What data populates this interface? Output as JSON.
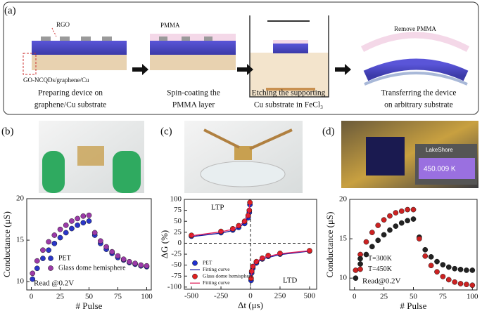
{
  "panel_labels": [
    "(a)",
    "(b)",
    "(c)",
    "(d)"
  ],
  "schematic": {
    "labels": [
      "RGO",
      "GO-NCQDs/graphene/Cu",
      "PMMA",
      "Remove PMMA"
    ],
    "steps": [
      [
        "Preparing device on",
        "graphene/Cu substrate"
      ],
      [
        "Spin-coating the",
        "PMMA layer"
      ],
      [
        "Etching the supporting",
        "Cu substrate in FeCl₃"
      ],
      [
        "Transferring the device",
        "on arbitrary substrate"
      ]
    ]
  },
  "photo_text": [
    "LakeShore",
    "450.009 K"
  ],
  "chart_data": [
    {
      "type": "scatter",
      "x_label": "# Pulse",
      "y_label": "Conductance (μS)",
      "x": [
        1,
        5,
        10,
        15,
        20,
        25,
        30,
        35,
        40,
        45,
        50,
        55,
        60,
        65,
        70,
        75,
        80,
        85,
        90,
        95,
        100
      ],
      "series": [
        {
          "name": "PET",
          "color": "#2a36c8",
          "mode": "markers",
          "values": [
            10.3,
            11.6,
            12.8,
            13.8,
            14.6,
            15.3,
            15.9,
            16.4,
            16.8,
            17.1,
            17.3,
            15.6,
            14.6,
            13.9,
            13.4,
            12.9,
            12.6,
            12.3,
            12.1,
            11.9,
            11.8
          ]
        },
        {
          "name": "Glass dome hemisphere",
          "color": "#9b3aa8",
          "mode": "markers",
          "values": [
            11.0,
            12.5,
            13.8,
            14.8,
            15.6,
            16.3,
            16.8,
            17.3,
            17.6,
            17.9,
            18.0,
            15.9,
            14.9,
            14.2,
            13.6,
            13.1,
            12.7,
            12.4,
            12.2,
            12.0,
            11.9
          ]
        }
      ],
      "xlim": [
        -4,
        104
      ],
      "ylim": [
        9,
        20
      ],
      "xticks": [
        0,
        25,
        50,
        75,
        100
      ],
      "yticks": [
        10,
        15,
        20
      ],
      "legend": "lower right",
      "annotations": [
        "Read @0.2V"
      ]
    },
    {
      "type": "scatter",
      "x_label": "Δt (μs)",
      "y_label": "ΔG (%)",
      "series": [
        {
          "name": "PET",
          "color": "#1f2fd0",
          "mode": "markers",
          "x": [
            -500,
            -250,
            -150,
            -100,
            -50,
            -20,
            -10,
            -5,
            5,
            10,
            20,
            50,
            100,
            150,
            250,
            500
          ],
          "values": [
            16,
            24,
            30,
            36,
            45,
            58,
            70,
            88,
            -85,
            -68,
            -57,
            -45,
            -36,
            -30,
            -25,
            -18
          ]
        },
        {
          "name": "Fitting curve",
          "color": "#1a1aa0",
          "mode": "line",
          "x": [
            -500,
            -250,
            -150,
            -100,
            -50,
            -20,
            -5,
            0,
            5,
            20,
            50,
            100,
            250,
            500
          ],
          "values": [
            15,
            23,
            29,
            35,
            46,
            60,
            85,
            null,
            -82,
            -58,
            -45,
            -36,
            -26,
            -18
          ]
        },
        {
          "name": "Glass dome hemisphere",
          "color": "#e02020",
          "mode": "markers",
          "x": [
            -500,
            -250,
            -150,
            -100,
            -50,
            -20,
            -10,
            -5,
            5,
            10,
            20,
            50,
            100,
            150,
            250,
            500
          ],
          "values": [
            18,
            27,
            33,
            40,
            50,
            63,
            75,
            93,
            -80,
            -64,
            -53,
            -42,
            -34,
            -28,
            -23,
            -17
          ]
        },
        {
          "name": "Fitting curve",
          "color": "#e0205a",
          "mode": "line",
          "x": [
            -500,
            -250,
            -150,
            -100,
            -50,
            -20,
            -5,
            0,
            5,
            20,
            50,
            100,
            250,
            500
          ],
          "values": [
            17,
            26,
            32,
            39,
            50,
            65,
            90,
            null,
            -78,
            -54,
            -42,
            -33,
            -24,
            -17
          ]
        }
      ],
      "xlim": [
        -560,
        560
      ],
      "ylim": [
        -105,
        100
      ],
      "xticks": [
        -500,
        -250,
        0,
        250,
        500
      ],
      "yticks": [
        100,
        75,
        50,
        25,
        0,
        -25,
        -50,
        -75,
        -100
      ],
      "zero_lines": true,
      "legend": "lower left",
      "annotations": [
        "LTP",
        "LTD"
      ]
    },
    {
      "type": "scatter",
      "x_label": "# Pulse",
      "y_label": "Conductance (μS)",
      "x": [
        1,
        5,
        10,
        15,
        20,
        25,
        30,
        35,
        40,
        45,
        50,
        55,
        60,
        65,
        70,
        75,
        80,
        85,
        90,
        95,
        100
      ],
      "series": [
        {
          "name": "T=300K",
          "color": "#222222",
          "mode": "markers",
          "values": [
            10.0,
            11.8,
            13.0,
            14.0,
            14.8,
            15.5,
            16.1,
            16.6,
            17.0,
            17.3,
            17.5,
            15.2,
            13.6,
            12.7,
            12.1,
            11.7,
            11.4,
            11.2,
            11.1,
            11.0,
            11.0
          ]
        },
        {
          "name": "T=450K",
          "color": "#cc2222",
          "mode": "markers",
          "values": [
            11.0,
            13.0,
            14.6,
            15.8,
            16.7,
            17.4,
            17.9,
            18.3,
            18.5,
            18.7,
            18.7,
            15.0,
            12.8,
            11.6,
            10.8,
            10.2,
            9.8,
            9.5,
            9.3,
            9.2,
            9.1
          ]
        }
      ],
      "xlim": [
        -4,
        104
      ],
      "ylim": [
        8.5,
        20
      ],
      "xticks": [
        0,
        25,
        50,
        75,
        100
      ],
      "yticks": [
        10,
        15,
        20
      ],
      "legend": "lower left",
      "annotations": [
        "Read@0.2V"
      ]
    }
  ]
}
